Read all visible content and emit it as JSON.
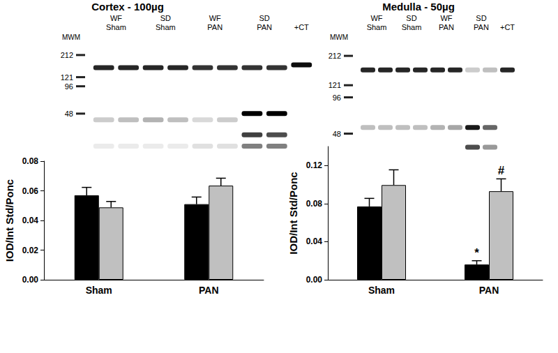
{
  "chart_data": [
    {
      "type": "bar",
      "title": "Cortex - 100µg",
      "blot": {
        "lanes": [
          "WF Sham",
          "WF Sham",
          "SD Sham",
          "SD Sham",
          "WF PAN",
          "WF PAN",
          "SD PAN",
          "SD PAN",
          "+CT"
        ],
        "marker_label": "MWM",
        "markers": [
          212,
          121,
          96,
          48
        ],
        "log": "y",
        "ylim": [
          16,
          366
        ],
        "bands": [
          {
            "mw": 154,
            "intensity": [
              0.85,
              0.85,
              0.85,
              0.85,
              0.8,
              0.8,
              0.8,
              0.8,
              0
            ]
          },
          {
            "mw": 165,
            "intensity": [
              0,
              0,
              0,
              0,
              0,
              0,
              0,
              0,
              0.95
            ]
          },
          {
            "mw": 48,
            "intensity": [
              0,
              0,
              0,
              0,
              0,
              0,
              1,
              1,
              0
            ]
          },
          {
            "mw": 41,
            "intensity": [
              0.2,
              0.25,
              0.3,
              0.25,
              0.15,
              0.2,
              0,
              0,
              0
            ]
          },
          {
            "mw": 28,
            "intensity": [
              0,
              0,
              0,
              0,
              0,
              0,
              0.75,
              0.7,
              0
            ]
          },
          {
            "mw": 21,
            "intensity": [
              0.08,
              0.08,
              0.08,
              0.08,
              0.12,
              0.12,
              0.5,
              0.5,
              0
            ]
          }
        ]
      },
      "categories": [
        "Sham",
        "PAN"
      ],
      "ylabel": "IOD/Int Std/Ponc",
      "ylim": [
        0,
        0.08
      ],
      "yticks": [
        {
          "value": 0,
          "label": "0.00"
        },
        {
          "value": 0.02,
          "label": "0.02"
        },
        {
          "value": 0.04,
          "label": "0.04"
        },
        {
          "value": 0.06,
          "label": "0.06"
        },
        {
          "value": 0.08,
          "label": "0.08"
        }
      ],
      "series": [
        {
          "color": "#000000",
          "values": [
            0.057,
            0.051
          ],
          "errors": [
            0.0053,
            0.0048
          ],
          "annotations": [
            null,
            null
          ]
        },
        {
          "color": "#c0c0c0",
          "values": [
            0.0488,
            0.0635
          ],
          "errors": [
            0.004,
            0.005
          ],
          "annotations": [
            null,
            null
          ]
        }
      ]
    },
    {
      "type": "bar",
      "title": "Medulla - 50µg",
      "blot": {
        "lanes": [
          "WF Sham",
          "WF Sham",
          "SD Sham",
          "SD Sham",
          "WF PAN",
          "WF PAN",
          "SD PAN",
          "SD PAN",
          "+CT"
        ],
        "marker_label": "MWM",
        "markers": [
          212,
          121,
          96,
          48
        ],
        "log": "y",
        "ylim": [
          32,
          325
        ],
        "bands": [
          {
            "mw": 162,
            "intensity": [
              0.85,
              0.85,
              0.85,
              0.85,
              0.85,
              0.85,
              0.2,
              0.25,
              0.85
            ]
          },
          {
            "mw": 54,
            "intensity": [
              0.25,
              0.25,
              0.25,
              0.25,
              0.3,
              0.35,
              0.9,
              0.6,
              0
            ]
          },
          {
            "mw": 37,
            "intensity": [
              0,
              0,
              0,
              0,
              0,
              0,
              0.7,
              0.4,
              0
            ]
          }
        ]
      },
      "categories": [
        "Sham",
        "PAN"
      ],
      "ylabel": "IOD/Int Std/Ponc",
      "ylim": [
        0,
        0.14
      ],
      "yticks": [
        {
          "value": 0,
          "label": "0.00"
        },
        {
          "value": 0.04,
          "label": "0.04"
        },
        {
          "value": 0.08,
          "label": "0.08"
        },
        {
          "value": 0.12,
          "label": "0.12"
        }
      ],
      "series": [
        {
          "color": "#000000",
          "values": [
            0.077,
            0.016
          ],
          "errors": [
            0.0085,
            0.004
          ],
          "annotations": [
            null,
            "*"
          ]
        },
        {
          "color": "#c0c0c0",
          "values": [
            0.0995,
            0.093
          ],
          "errors": [
            0.016,
            0.013
          ],
          "annotations": [
            null,
            "#"
          ]
        }
      ]
    }
  ]
}
